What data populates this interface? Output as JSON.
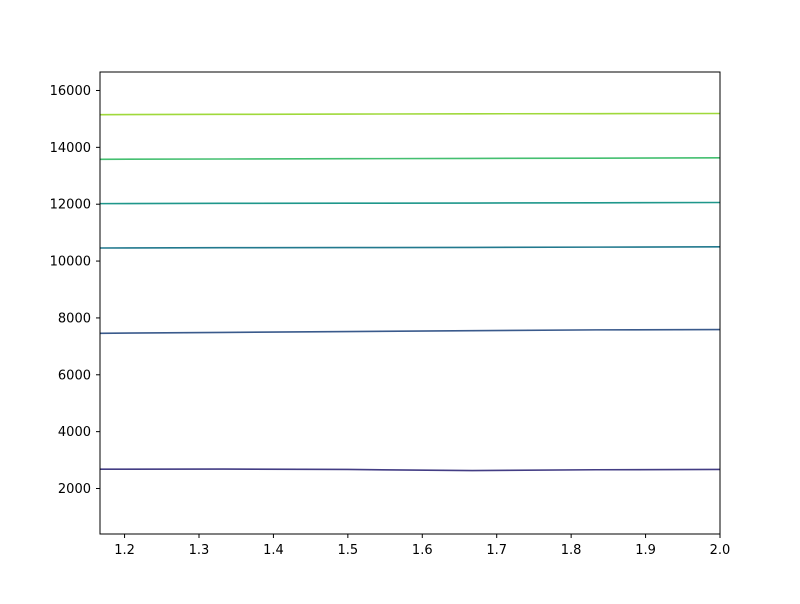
{
  "chart_data": {
    "type": "line",
    "title": "",
    "xlabel": "",
    "ylabel": "",
    "xlim": [
      1.167,
      2.0
    ],
    "ylim": [
      400,
      16650
    ],
    "xticks": [
      1.2,
      1.3,
      1.4,
      1.5,
      1.6,
      1.7,
      1.8,
      1.9,
      2.0
    ],
    "xtick_labels": [
      "1.2",
      "1.3",
      "1.4",
      "1.5",
      "1.6",
      "1.7",
      "1.8",
      "1.9",
      "2.0"
    ],
    "yticks": [
      2000,
      4000,
      6000,
      8000,
      10000,
      12000,
      14000,
      16000
    ],
    "ytick_labels": [
      "2000",
      "4000",
      "6000",
      "8000",
      "10000",
      "12000",
      "14000",
      "16000"
    ],
    "grid": false,
    "legend": "none",
    "series": [
      {
        "color": "#433d84",
        "x": [
          1.167,
          1.333,
          1.5,
          1.667,
          1.833,
          2.0
        ],
        "y": [
          2680,
          2685,
          2670,
          2630,
          2660,
          2670
        ]
      },
      {
        "color": "#3a5a8c",
        "x": [
          1.167,
          1.333,
          1.5,
          1.667,
          1.833,
          2.0
        ],
        "y": [
          7460,
          7490,
          7520,
          7550,
          7580,
          7590
        ]
      },
      {
        "color": "#22798e",
        "x": [
          1.167,
          1.333,
          1.5,
          1.667,
          1.833,
          2.0
        ],
        "y": [
          10460,
          10470,
          10475,
          10480,
          10490,
          10500
        ]
      },
      {
        "color": "#1f978b",
        "x": [
          1.167,
          1.333,
          1.5,
          1.667,
          1.833,
          2.0
        ],
        "y": [
          12020,
          12030,
          12035,
          12040,
          12050,
          12060
        ]
      },
      {
        "color": "#44bf70",
        "x": [
          1.167,
          1.333,
          1.5,
          1.667,
          1.833,
          2.0
        ],
        "y": [
          13580,
          13590,
          13600,
          13610,
          13620,
          13630
        ]
      },
      {
        "color": "#a0d93b",
        "x": [
          1.167,
          1.333,
          1.5,
          1.667,
          1.833,
          2.0
        ],
        "y": [
          15150,
          15160,
          15170,
          15180,
          15185,
          15190
        ]
      }
    ]
  }
}
